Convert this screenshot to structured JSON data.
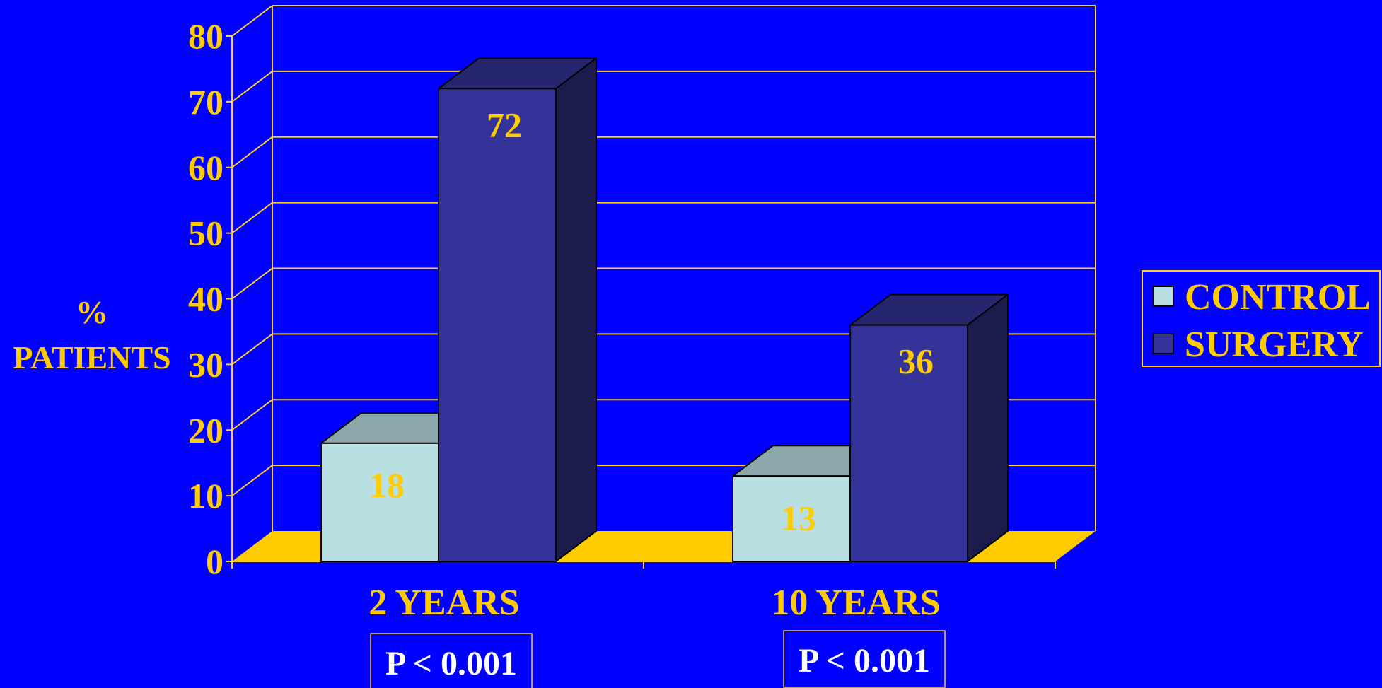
{
  "chart_data": {
    "type": "bar",
    "title": "",
    "xlabel": "",
    "ylabel_lines": [
      "%",
      "PATIENTS"
    ],
    "categories": [
      "2 YEARS",
      "10 YEARS"
    ],
    "series": [
      {
        "name": "CONTROL",
        "values": [
          18,
          13
        ]
      },
      {
        "name": "SURGERY",
        "values": [
          72,
          36
        ]
      }
    ],
    "data_labels": [
      [
        "18",
        "13"
      ],
      [
        "72",
        "36"
      ]
    ],
    "ylim": [
      0,
      80
    ],
    "yticks": [
      0,
      10,
      20,
      30,
      40,
      50,
      60,
      70,
      80
    ],
    "grid": true,
    "style": "3d-column",
    "legend_position": "right",
    "annotations": [
      "P < 0.001",
      "P < 0.001"
    ]
  },
  "colors": {
    "background": "#0000FF",
    "text": "#FFCC00",
    "grid": "#FFCC33",
    "floor": "#FFCC00",
    "annotation_text": "#FFFFFF",
    "control_front": "#B8E0E2",
    "control_top": "#8AA8AA",
    "control_side": "#6E8A8C",
    "surgery_front": "#333399",
    "surgery_top": "#26266E",
    "surgery_side": "#1C1C4C",
    "control_label": "#FFCC00",
    "surgery_label": "#FFCC00"
  }
}
